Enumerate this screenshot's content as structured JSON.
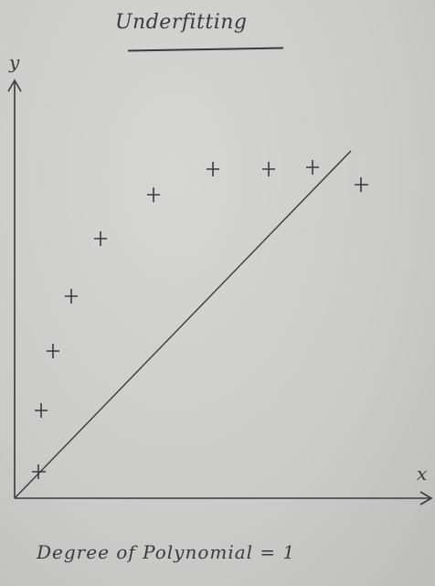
{
  "title": "Underfitting",
  "axes": {
    "y_label": "y",
    "x_label": "x"
  },
  "caption": "Degree of Polynomial = 1",
  "colors": {
    "ink": "#3a3a40"
  }
}
